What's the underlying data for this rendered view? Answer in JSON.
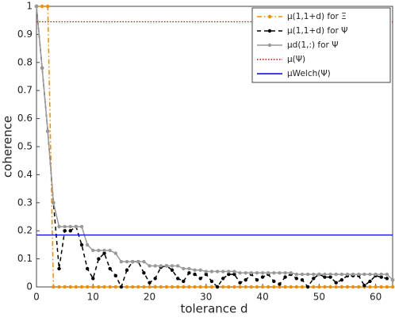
{
  "chart_data": {
    "type": "line",
    "xlabel": "tolerance d",
    "ylabel": "coherence",
    "x": [
      0,
      1,
      2,
      3,
      4,
      5,
      6,
      7,
      8,
      9,
      10,
      11,
      12,
      13,
      14,
      15,
      16,
      17,
      18,
      19,
      20,
      21,
      22,
      23,
      24,
      25,
      26,
      27,
      28,
      29,
      30,
      31,
      32,
      33,
      34,
      35,
      36,
      37,
      38,
      39,
      40,
      41,
      42,
      43,
      44,
      45,
      46,
      47,
      48,
      49,
      50,
      51,
      52,
      53,
      54,
      55,
      56,
      57,
      58,
      59,
      60,
      61,
      62,
      63
    ],
    "xlim": [
      0,
      63
    ],
    "ylim": [
      0,
      1
    ],
    "xticks": [
      0,
      10,
      20,
      30,
      40,
      50,
      60
    ],
    "yticks": [
      0,
      0.1,
      0.2,
      0.3,
      0.4,
      0.5,
      0.6,
      0.7,
      0.8,
      0.9,
      1
    ],
    "legend": "upper right",
    "series": [
      {
        "name": "μ(1,1+d) for Ξ",
        "color": "#f28c00",
        "dash": "dashdot",
        "marker": true,
        "values": [
          1,
          1,
          1,
          0,
          0,
          0,
          0,
          0,
          0,
          0,
          0,
          0,
          0,
          0,
          0,
          0,
          0,
          0,
          0,
          0,
          0,
          0,
          0,
          0,
          0,
          0,
          0,
          0,
          0,
          0,
          0,
          0,
          0,
          0,
          0,
          0,
          0,
          0,
          0,
          0,
          0,
          0,
          0,
          0,
          0,
          0,
          0,
          0,
          0,
          0,
          0,
          0,
          0,
          0,
          0,
          0,
          0,
          0,
          0,
          0,
          0,
          0,
          0,
          0
        ]
      },
      {
        "name": "μ(1,1+d) for Ψ",
        "color": "#000000",
        "dash": "dashed",
        "marker": true,
        "values": [
          1,
          0.78,
          0.555,
          0.3,
          0.065,
          0.2,
          0.2,
          0.215,
          0.15,
          0.065,
          0.03,
          0.1,
          0.12,
          0.065,
          0.04,
          0,
          0.06,
          0.09,
          0.09,
          0.05,
          0.015,
          0.03,
          0.07,
          0.075,
          0.06,
          0.03,
          0.02,
          0.05,
          0.045,
          0.03,
          0.045,
          0.02,
          0,
          0.03,
          0.045,
          0.045,
          0.015,
          0.025,
          0.045,
          0.025,
          0.035,
          0.045,
          0.02,
          0.01,
          0.035,
          0.045,
          0.03,
          0.025,
          0,
          0.03,
          0.045,
          0.035,
          0.035,
          0.015,
          0.025,
          0.04,
          0.04,
          0.04,
          0.005,
          0.02,
          0.04,
          0.035,
          0.03,
          0.025
        ]
      },
      {
        "name": "μd(1,:) for Ψ",
        "color": "#999999",
        "dash": "solid",
        "marker": true,
        "values": [
          1,
          0.78,
          0.555,
          0.3,
          0.215,
          0.215,
          0.215,
          0.215,
          0.215,
          0.15,
          0.13,
          0.13,
          0.13,
          0.13,
          0.12,
          0.09,
          0.09,
          0.09,
          0.09,
          0.09,
          0.075,
          0.075,
          0.075,
          0.075,
          0.075,
          0.075,
          0.065,
          0.065,
          0.06,
          0.06,
          0.055,
          0.055,
          0.055,
          0.055,
          0.055,
          0.055,
          0.05,
          0.05,
          0.05,
          0.05,
          0.05,
          0.05,
          0.05,
          0.05,
          0.05,
          0.05,
          0.045,
          0.045,
          0.045,
          0.045,
          0.045,
          0.045,
          0.045,
          0.045,
          0.045,
          0.045,
          0.045,
          0.045,
          0.045,
          0.045,
          0.045,
          0.045,
          0.045,
          0.025
        ]
      },
      {
        "name": "μ(Ψ)",
        "color": "#e00000",
        "dash": "dotted",
        "value": 0.945
      },
      {
        "name": "μWelch(Ψ)",
        "color": "#0000e0",
        "dash": "solid",
        "value": 0.185
      }
    ]
  }
}
